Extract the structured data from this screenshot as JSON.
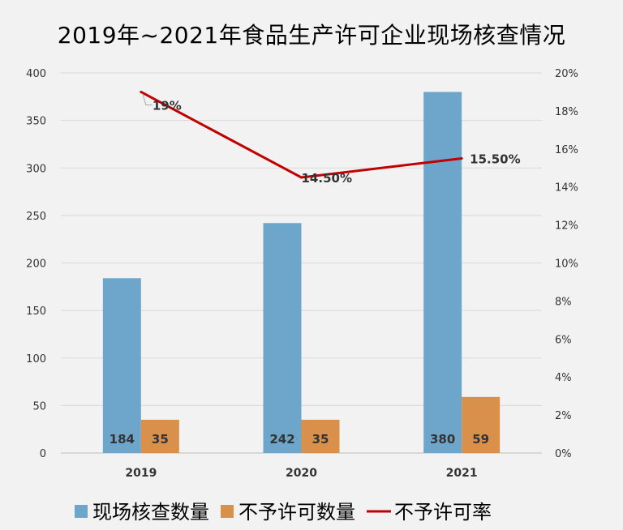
{
  "chart_data": {
    "type": "bar",
    "title": "2019年~2021年食品生产许可企业现场核查情况",
    "categories": [
      "2019",
      "2020",
      "2021"
    ],
    "series": [
      {
        "name": "现场核查数量",
        "type": "bar",
        "axis": "left",
        "color": "#6ea6cb",
        "values": [
          184,
          242,
          380
        ],
        "labels": [
          "184",
          "242",
          "380"
        ]
      },
      {
        "name": "不予许可数量",
        "type": "bar",
        "axis": "left",
        "color": "#d9904a",
        "values": [
          35,
          35,
          59
        ],
        "labels": [
          "35",
          "35",
          "59"
        ]
      },
      {
        "name": "不予许可率",
        "type": "line",
        "axis": "right",
        "color": "#c00000",
        "values": [
          19,
          14.5,
          15.5
        ],
        "labels": [
          "19%",
          "14.50%",
          "15.50%"
        ]
      }
    ],
    "y_left": {
      "ylim": [
        0,
        400
      ],
      "ticks": [
        "0",
        "50",
        "100",
        "150",
        "200",
        "250",
        "300",
        "350",
        "400"
      ]
    },
    "y_right": {
      "ylim": [
        0,
        20
      ],
      "ticks": [
        "0%",
        "2%",
        "4%",
        "6%",
        "8%",
        "10%",
        "12%",
        "14%",
        "16%",
        "18%",
        "20%"
      ]
    },
    "grid": true,
    "legend": "bottom"
  }
}
